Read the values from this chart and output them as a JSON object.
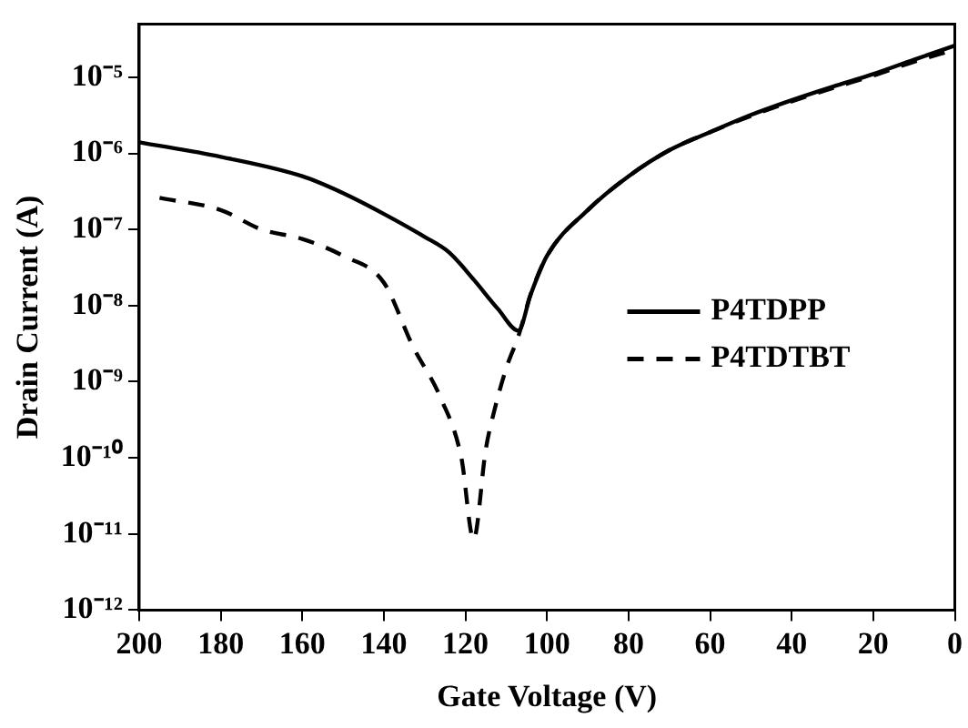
{
  "chart_data": {
    "type": "line",
    "xlabel": "Gate Voltage (V)",
    "ylabel": "Drain Current (A)",
    "log": "y",
    "grid": false,
    "legend": "right",
    "line_style": "solid",
    "marker": "none",
    "xlim": [
      200,
      0
    ],
    "xticks": [
      200,
      180,
      160,
      140,
      120,
      100,
      80,
      60,
      40,
      20,
      0
    ],
    "ylim": [
      1e-12,
      5e-05
    ],
    "yticks": [
      {
        "value": 1e-12,
        "label": "10⁻¹²"
      },
      {
        "value": 1e-11,
        "label": "10⁻¹¹"
      },
      {
        "value": 1e-10,
        "label": "10⁻¹⁰"
      },
      {
        "value": 1e-09,
        "label": "10⁻⁹"
      },
      {
        "value": 1e-08,
        "label": "10⁻⁸"
      },
      {
        "value": 1e-07,
        "label": "10⁻⁷"
      },
      {
        "value": 1e-06,
        "label": "10⁻⁶"
      },
      {
        "value": 1e-05,
        "label": "10⁻⁵"
      }
    ],
    "series": [
      {
        "name": "P4TDPP",
        "color": "#000000",
        "x": [
          200,
          180,
          160,
          150,
          140,
          130,
          124,
          118,
          112,
          107,
          104,
          100,
          90,
          80,
          70,
          60,
          50,
          40,
          30,
          20,
          10,
          0
        ],
        "values": [
          1.4e-06,
          9e-07,
          5e-07,
          3e-07,
          1.6e-07,
          8e-08,
          5e-08,
          2.2e-08,
          9e-09,
          4.7e-09,
          1.4e-08,
          4.5e-08,
          1.8e-07,
          5e-07,
          1.1e-06,
          1.9e-06,
          3.2e-06,
          5e-06,
          7.5e-06,
          1.1e-05,
          1.7e-05,
          2.6e-05
        ]
      },
      {
        "name": "P4TDTBT",
        "color": "#000000",
        "line_style": "dashed",
        "x": [
          195,
          180,
          170,
          160,
          150,
          140,
          133,
          126,
          121,
          118,
          115,
          113,
          110,
          107,
          104,
          100,
          90,
          80,
          70,
          60,
          50,
          40,
          30,
          20,
          10,
          0
        ],
        "values": [
          2.6e-07,
          1.8e-07,
          1e-07,
          7.5e-08,
          4.5e-08,
          2e-08,
          3e-09,
          6e-10,
          1e-10,
          8.5e-12,
          1.3e-10,
          4e-10,
          1.5e-09,
          4e-09,
          1.4e-08,
          4.5e-08,
          1.8e-07,
          5e-07,
          1.1e-06,
          1.9e-06,
          3.1e-06,
          4.8e-06,
          7.2e-06,
          1.05e-05,
          1.6e-05,
          2.3e-05
        ]
      }
    ]
  }
}
